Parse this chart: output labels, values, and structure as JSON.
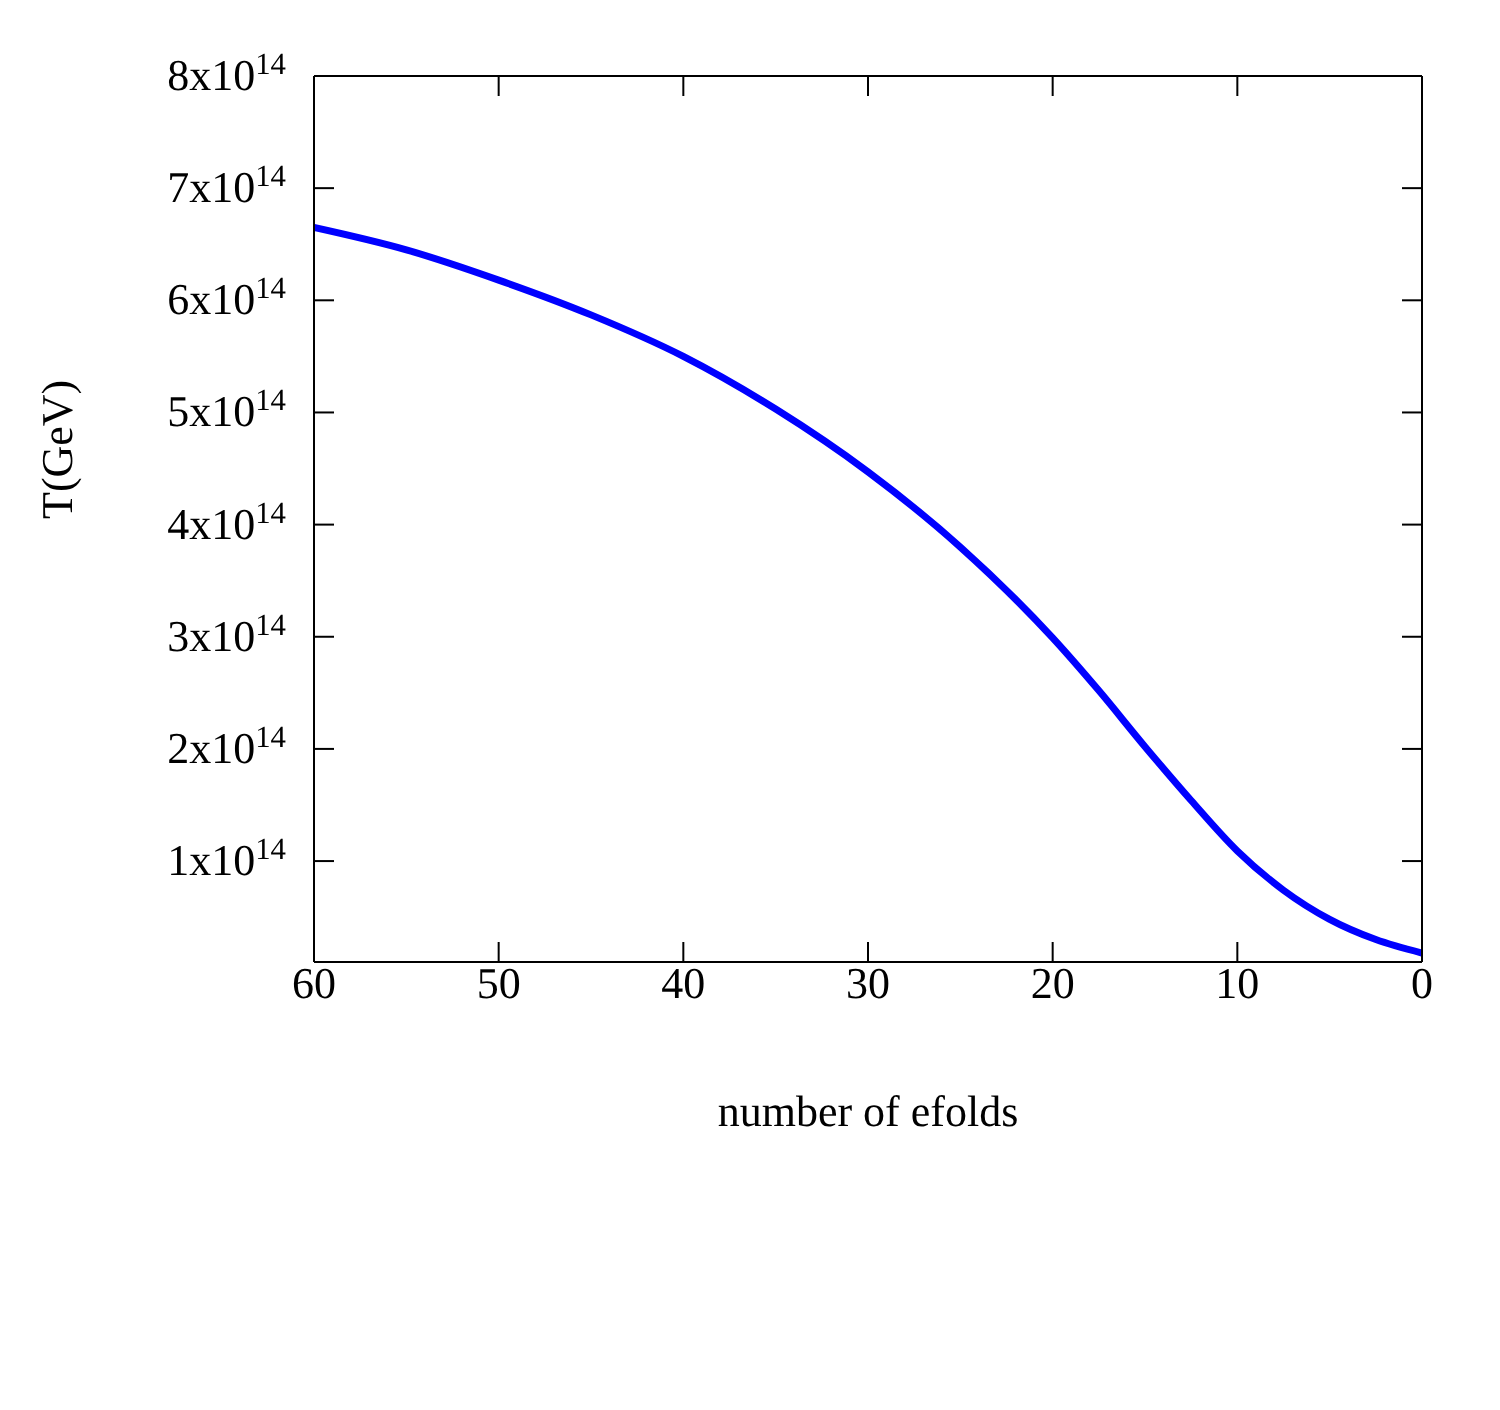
{
  "chart_data": {
    "type": "line",
    "xlabel": "number of efolds",
    "ylabel": "T(GeV)",
    "x": [
      60,
      55,
      50,
      45,
      40,
      35,
      30,
      25,
      20,
      17.5,
      15,
      12.5,
      10,
      7.5,
      5,
      2.5,
      0
    ],
    "series": [
      {
        "color": "#0000ff",
        "values": [
          665000000000000,
          645000000000000,
          618000000000000,
          587000000000000,
          550000000000000,
          503000000000000,
          447000000000000,
          380000000000000,
          299000000000000,
          252000000000000,
          202000000000000,
          154000000000000,
          109000000000000,
          74000000000000,
          48000000000000,
          30000000000000,
          18000000000000
        ]
      }
    ],
    "xlim": [
      60,
      0
    ],
    "xticks": [
      60,
      50,
      40,
      30,
      20,
      10,
      0
    ],
    "ylim": [
      10000000000000,
      800000000000000
    ],
    "yticks": [
      {
        "value": 100000000000000,
        "label": "1x10$^{14}$"
      },
      {
        "value": 200000000000000,
        "label": "2x10$^{14}$"
      },
      {
        "value": 300000000000000,
        "label": "3x10$^{14}$"
      },
      {
        "value": 400000000000000,
        "label": "4x10$^{14}$"
      },
      {
        "value": 500000000000000,
        "label": "5x10$^{14}$"
      },
      {
        "value": 600000000000000,
        "label": "6x10$^{14}$"
      },
      {
        "value": 700000000000000,
        "label": "7x10$^{14}$"
      },
      {
        "value": 800000000000000,
        "label": "8x10$^{14}$"
      }
    ],
    "grid": false,
    "marker": "none",
    "line_style": "solid"
  }
}
